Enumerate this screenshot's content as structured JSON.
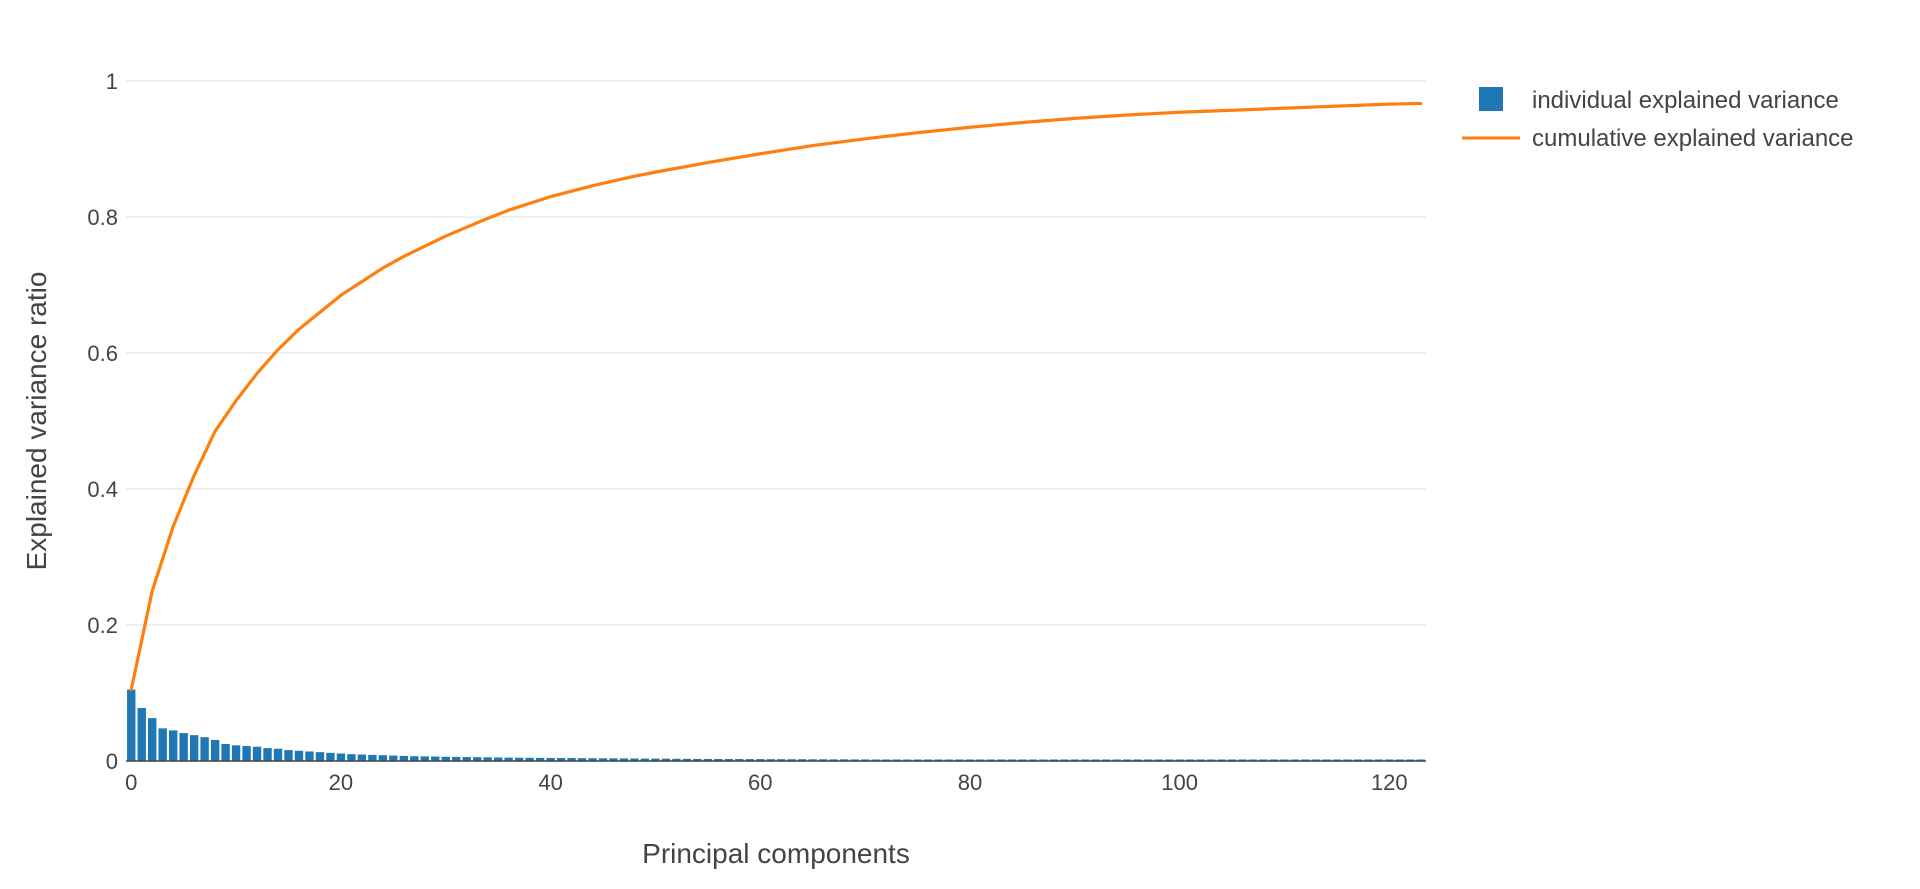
{
  "chart_data": {
    "type": "bar",
    "xlabel": "Principal components",
    "ylabel": "Explained variance ratio",
    "xlim": [
      -0.5,
      123.5
    ],
    "ylim": [
      0,
      1
    ],
    "x_ticks": [
      0,
      20,
      40,
      60,
      80,
      100,
      120
    ],
    "x_tick_labels": [
      "0",
      "20",
      "40",
      "60",
      "80",
      "100",
      "120"
    ],
    "y_ticks": [
      0,
      0.2,
      0.4,
      0.6,
      0.8,
      1
    ],
    "y_tick_labels": [
      "0",
      "0.2",
      "0.4",
      "0.6",
      "0.8",
      "1"
    ],
    "grid": true,
    "legend_position": "top-right",
    "series": [
      {
        "name": "individual explained variance",
        "type": "bar",
        "color": "#1f77b4",
        "x": [
          0,
          1,
          2,
          3,
          4,
          5,
          6,
          7,
          8,
          9,
          10,
          11,
          12,
          13,
          14,
          15,
          16,
          17,
          18,
          19,
          20,
          21,
          22,
          23,
          24,
          25,
          26,
          27,
          28,
          29,
          30,
          31,
          32,
          33,
          34,
          35,
          36,
          37,
          38,
          39,
          40,
          41,
          42,
          43,
          44,
          45,
          46,
          47,
          48,
          49,
          50,
          51,
          52,
          53,
          54,
          55,
          56,
          57,
          58,
          59,
          60,
          61,
          62,
          63,
          64,
          65,
          66,
          67,
          68,
          69,
          70,
          71,
          72,
          73,
          74,
          75,
          76,
          77,
          78,
          79,
          80,
          81,
          82,
          83,
          84,
          85,
          86,
          87,
          88,
          89,
          90,
          91,
          92,
          93,
          94,
          95,
          96,
          97,
          98,
          99,
          100,
          101,
          102,
          103,
          104,
          105,
          106,
          107,
          108,
          109,
          110,
          111,
          112,
          113,
          114,
          115,
          116,
          117,
          118,
          119,
          120,
          121,
          122,
          123
        ],
        "values": [
          0.105,
          0.078,
          0.063,
          0.048,
          0.045,
          0.041,
          0.038,
          0.035,
          0.031,
          0.025,
          0.023,
          0.022,
          0.021,
          0.019,
          0.018,
          0.016,
          0.015,
          0.014,
          0.013,
          0.012,
          0.011,
          0.01,
          0.0095,
          0.009,
          0.0085,
          0.008,
          0.0075,
          0.007,
          0.0068,
          0.0065,
          0.0062,
          0.006,
          0.0058,
          0.0056,
          0.0054,
          0.0052,
          0.005,
          0.0048,
          0.0047,
          0.0046,
          0.0045,
          0.0044,
          0.0043,
          0.0042,
          0.0041,
          0.004,
          0.0039,
          0.0038,
          0.0037,
          0.0036,
          0.0035,
          0.0034,
          0.0033,
          0.0032,
          0.0031,
          0.003,
          0.003,
          0.0029,
          0.0029,
          0.0028,
          0.0028,
          0.0027,
          0.0027,
          0.0026,
          0.0026,
          0.0025,
          0.0025,
          0.0024,
          0.0024,
          0.0023,
          0.0023,
          0.0022,
          0.0022,
          0.0021,
          0.0021,
          0.002,
          0.002,
          0.002,
          0.0019,
          0.0019,
          0.0019,
          0.0018,
          0.0018,
          0.0018,
          0.0017,
          0.0017,
          0.0017,
          0.0016,
          0.0016,
          0.0016,
          0.0015,
          0.0015,
          0.0015,
          0.0015,
          0.0014,
          0.0014,
          0.0014,
          0.0014,
          0.0013,
          0.0013,
          0.0013,
          0.0013,
          0.0012,
          0.0012,
          0.0012,
          0.0012,
          0.0011,
          0.0011,
          0.0011,
          0.0011,
          0.001,
          0.001,
          0.001,
          0.001,
          0.001,
          0.0009,
          0.0009,
          0.0009,
          0.0009,
          0.0009,
          0.0008,
          0.0008,
          0.0008,
          0.0008
        ]
      },
      {
        "name": "cumulative explained variance",
        "type": "line",
        "color": "#ff7f0e",
        "x": [
          0,
          2,
          4,
          6,
          8,
          10,
          12,
          14,
          16,
          18,
          20,
          22,
          24,
          26,
          28,
          30,
          32,
          34,
          36,
          38,
          40,
          42,
          44,
          46,
          48,
          50,
          55,
          60,
          65,
          70,
          75,
          80,
          85,
          90,
          95,
          100,
          105,
          110,
          115,
          120,
          123
        ],
        "values": [
          0.105,
          0.25,
          0.345,
          0.42,
          0.485,
          0.53,
          0.57,
          0.605,
          0.635,
          0.66,
          0.685,
          0.705,
          0.725,
          0.742,
          0.757,
          0.772,
          0.785,
          0.798,
          0.81,
          0.82,
          0.83,
          0.838,
          0.846,
          0.853,
          0.86,
          0.866,
          0.88,
          0.893,
          0.905,
          0.915,
          0.924,
          0.932,
          0.939,
          0.945,
          0.95,
          0.954,
          0.957,
          0.96,
          0.963,
          0.966,
          0.967
        ]
      }
    ]
  }
}
